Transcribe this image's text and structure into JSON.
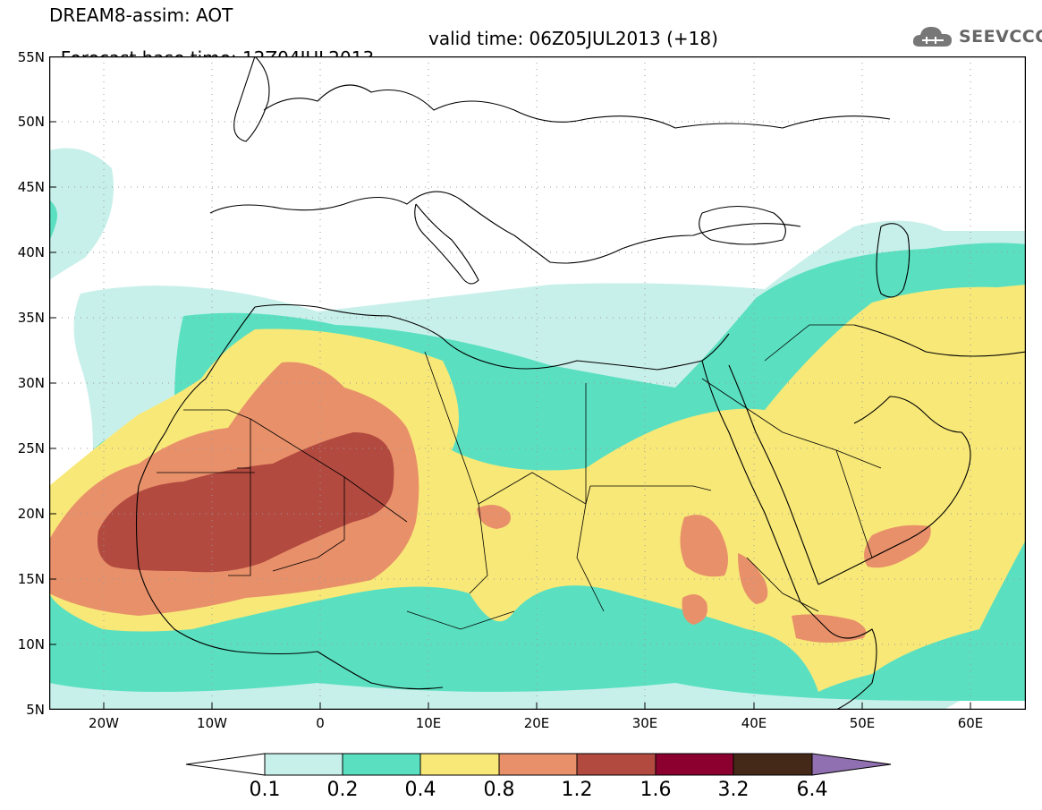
{
  "title": {
    "line1": "DREAM8-assim: AOT",
    "base_time": "Forecast base time: 12Z04JUL2013",
    "valid_time": "valid time: 06Z05JUL2013 (+18)"
  },
  "logo": {
    "text": "SEEVCCC",
    "icon": "cloud-icon"
  },
  "axes": {
    "lat_labels": [
      "55N",
      "50N",
      "45N",
      "40N",
      "35N",
      "30N",
      "25N",
      "20N",
      "15N",
      "10N",
      "5N"
    ],
    "lon_labels": [
      "20W",
      "10W",
      "0",
      "10E",
      "20E",
      "30E",
      "40E",
      "50E",
      "60E"
    ]
  },
  "colorbar": {
    "labels": [
      "0.1",
      "0.2",
      "0.4",
      "0.8",
      "1.2",
      "1.6",
      "3.2",
      "6.4"
    ],
    "colors": [
      "#ffffff",
      "#c8f0ea",
      "#5ae0c0",
      "#f8e878",
      "#e8906a",
      "#b24a40",
      "#8c0030",
      "#442818",
      "#9070b0"
    ]
  },
  "map": {
    "lon_range": [
      -25,
      65
    ],
    "lat_range": [
      5,
      55
    ],
    "field": "Aerosol Optical Thickness"
  }
}
